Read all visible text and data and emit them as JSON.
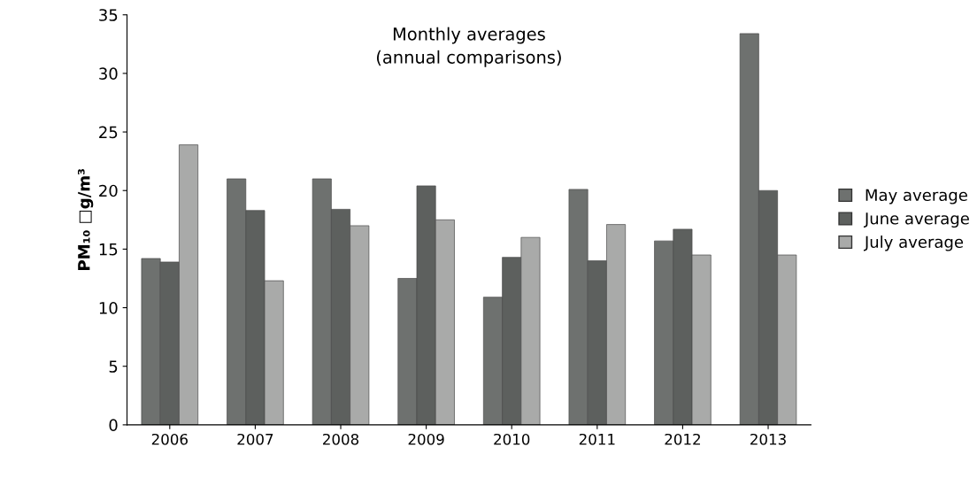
{
  "chart_data": {
    "type": "bar",
    "title": "Monthly averages\n(annual comparisons)",
    "ylabel": "PM₁₀ □g/m³",
    "categories": [
      "2006",
      "2007",
      "2008",
      "2009",
      "2010",
      "2011",
      "2012",
      "2013"
    ],
    "series": [
      {
        "name": "May average",
        "color": "#6e716f",
        "values": [
          14.2,
          21.0,
          21.0,
          12.5,
          10.9,
          20.1,
          15.7,
          33.4
        ]
      },
      {
        "name": "June average",
        "color": "#5d605e",
        "values": [
          13.9,
          18.3,
          18.4,
          20.4,
          14.3,
          14.0,
          16.7,
          20.0
        ]
      },
      {
        "name": "July average",
        "color": "#a9aaa9",
        "values": [
          23.9,
          12.3,
          17.0,
          17.5,
          16.0,
          17.1,
          14.5,
          14.5
        ]
      }
    ],
    "ylim": [
      0,
      35
    ],
    "yticks": [
      0,
      5,
      10,
      15,
      20,
      25,
      30,
      35
    ],
    "grid": false,
    "legend": "right"
  }
}
